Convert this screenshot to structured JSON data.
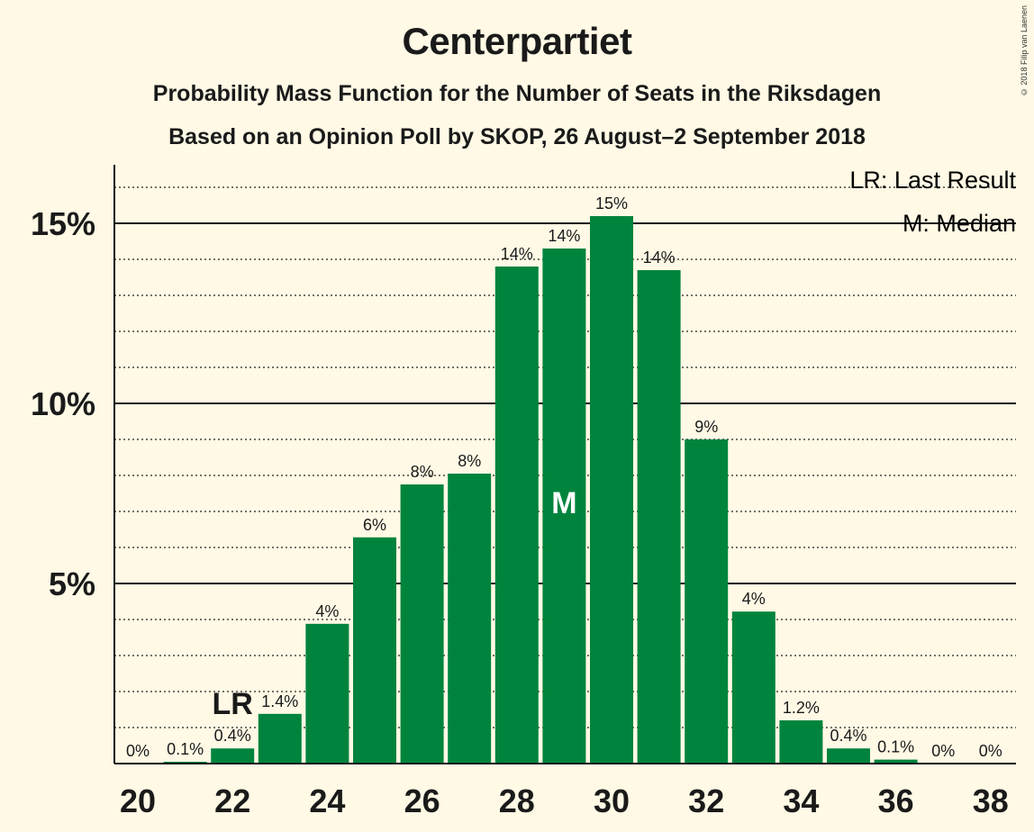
{
  "title": "Centerpartiet",
  "subtitle": "Probability Mass Function for the Number of Seats in the Riksdagen",
  "subtitle2": "Based on an Opinion Poll by SKOP, 26 August–2 September 2018",
  "copyright": "© 2018 Filip van Laenen",
  "legend": {
    "last_result": "LR: Last Result",
    "median": "M: Median"
  },
  "colors": {
    "bar": "#00843d",
    "background": "#fff9e5"
  },
  "chart_data": {
    "type": "bar",
    "x": [
      20,
      21,
      22,
      23,
      24,
      25,
      26,
      27,
      28,
      29,
      30,
      31,
      32,
      33,
      34,
      35,
      36,
      37,
      38
    ],
    "values": [
      0,
      0.05,
      0.42,
      1.38,
      3.88,
      6.28,
      7.75,
      8.05,
      13.8,
      14.3,
      15.2,
      13.7,
      9.0,
      4.22,
      1.2,
      0.42,
      0.11,
      0,
      0
    ],
    "labels": [
      "0%",
      "0.1%",
      "0.4%",
      "1.4%",
      "4%",
      "6%",
      "8%",
      "8%",
      "14%",
      "14%",
      "15%",
      "14%",
      "9%",
      "4%",
      "1.2%",
      "0.4%",
      "0.1%",
      "0%",
      "0%"
    ],
    "x_tick_labels": [
      "20",
      "22",
      "24",
      "26",
      "28",
      "30",
      "32",
      "34",
      "36",
      "38"
    ],
    "y_tick_labels": [
      "5%",
      "10%",
      "15%"
    ],
    "y_ticks": [
      5,
      10,
      15
    ],
    "ylim": [
      0,
      16.6
    ],
    "grid": "solid lines at 5% steps, dotted lines at 1% steps",
    "last_result_seat": 22,
    "last_result_marker": "LR",
    "median_seat": 29,
    "median_marker": "M",
    "legend_position": "top-right"
  }
}
